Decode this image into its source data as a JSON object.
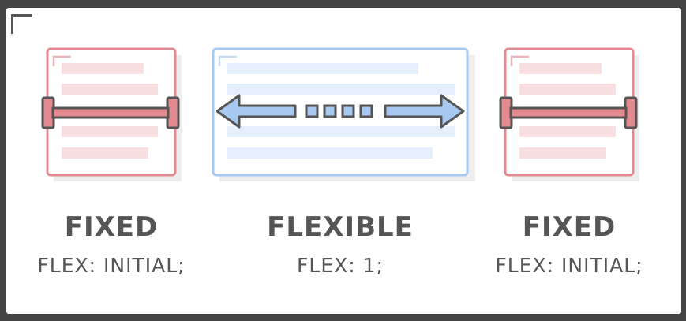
{
  "columns": [
    {
      "title": "FIXED",
      "code": "FLEX: INITIAL;",
      "kind": "fixed"
    },
    {
      "title": "FLEXIBLE",
      "code": "FLEX: 1;",
      "kind": "flexible"
    },
    {
      "title": "FIXED",
      "code": "FLEX: INITIAL;",
      "kind": "fixed"
    }
  ],
  "colors": {
    "fixed": "#e38a90",
    "fixed_fill": "#f8dfe1",
    "flexible": "#a7c8f0",
    "flexible_fill": "#e6f0fc",
    "stroke": "#555555",
    "text": "#555555",
    "frame": "#444444"
  },
  "icons": {
    "fixed_marker": "width-bracket-icon",
    "flexible_marker": "double-arrow-icon"
  }
}
